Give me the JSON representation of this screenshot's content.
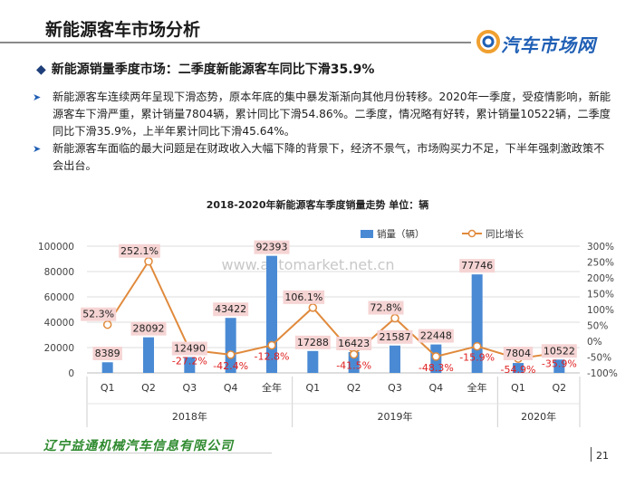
{
  "page": {
    "title": "新能源客车市场分析",
    "logo_text": "汽车市场网",
    "subtitle": "新能源销量季度市场：二季度新能源客车同比下滑35.9%",
    "bullets": [
      "新能源客车连续两年呈现下滑态势，原本年底的集中暴发渐渐向其他月份转移。2020年一季度，受疫情影响，新能源客车下滑严重，累计销量7804辆，累计同比下滑54.86%。二季度，情况略有好转，累计销量10522辆，二季度同比下滑35.9%，上半年累计同比下滑45.64%。",
      "新能源客车面临的最大问题是在财政收入大幅下降的背景下，经济不景气，市场购买力不足，下半年强刺激政策不会出台。"
    ],
    "chart_title": "2018-2020年新能源客车季度销量走势     单位：辆",
    "watermark": "www.automarket.net.cn",
    "company": "辽宁益通机械汽车信息有限公司",
    "page_number": "21"
  },
  "colors": {
    "bar": "#4a8ad4",
    "line": "#e08a3c",
    "label_bg": "#f6d4d4",
    "neg_text": "#e02020",
    "accent": "#1f5fb5",
    "company": "#2f8a2f"
  },
  "chart_data": {
    "type": "bar+line",
    "title": "2018-2020年新能源客车季度销量走势",
    "unit": "单位：辆",
    "categories": [
      "Q1",
      "Q2",
      "Q3",
      "Q4",
      "全年",
      "Q1",
      "Q2",
      "Q3",
      "Q4",
      "全年",
      "Q1",
      "Q2"
    ],
    "groups": [
      {
        "label": "2018年",
        "count": 5
      },
      {
        "label": "2019年",
        "count": 5
      },
      {
        "label": "2020年",
        "count": 2
      }
    ],
    "series": [
      {
        "name": "销量（辆）",
        "type": "bar",
        "axis": "left",
        "values": [
          8389,
          28092,
          12490,
          43422,
          92393,
          17288,
          16423,
          21587,
          22448,
          77746,
          7804,
          10522
        ],
        "labels": [
          "8389",
          "28092",
          "12490",
          "43422",
          "92393",
          "17288",
          "16423",
          "21587",
          "22448",
          "77746",
          "7804",
          "10522"
        ]
      },
      {
        "name": "同比增长",
        "type": "line",
        "axis": "right",
        "values": [
          52.3,
          252.1,
          -27.2,
          -42.4,
          -12.8,
          106.1,
          -41.5,
          72.8,
          -48.3,
          -15.9,
          -54.9,
          -35.9
        ],
        "labels": [
          "52.3%",
          "252.1%",
          "-27.2%",
          "-42.4%",
          "-12.8%",
          "106.1%",
          "-41.5%",
          "72.8%",
          "-48.3%",
          "-15.9%",
          "-54.9%",
          "-35.9%"
        ]
      }
    ],
    "y_left": {
      "min": 0,
      "max": 100000,
      "ticks": [
        0,
        20000,
        40000,
        60000,
        80000,
        100000
      ]
    },
    "y_right": {
      "min": -100,
      "max": 300,
      "ticks": [
        -100,
        -50,
        0,
        50,
        100,
        150,
        200,
        250,
        300
      ],
      "tick_labels": [
        "-100%",
        "-50%",
        "0%",
        "50%",
        "100%",
        "150%",
        "200%",
        "250%",
        "300%"
      ]
    },
    "legend_position": "top-right",
    "grid": true
  }
}
